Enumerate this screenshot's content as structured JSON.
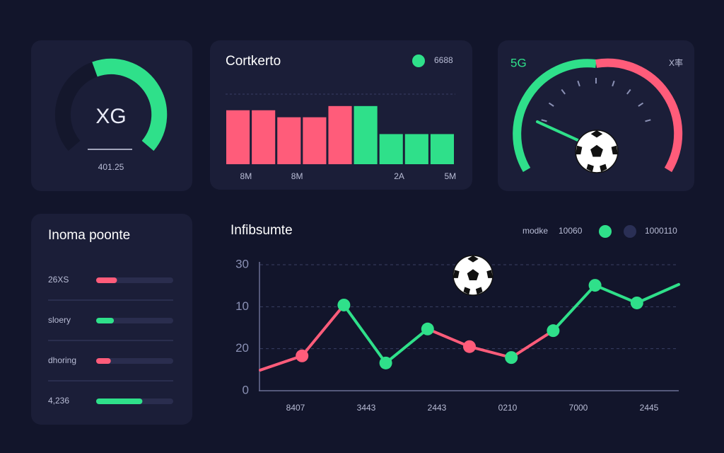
{
  "panels": {
    "xg_gauge": {
      "label": "XG",
      "value": "401.25"
    },
    "bar_chart": {
      "type": "bar",
      "title": "Cortkerto",
      "legend": "6688",
      "legend_color": "#2fe08a",
      "categories": [
        "8M",
        null,
        "8M",
        null,
        null,
        null,
        "2A",
        null,
        "5M"
      ],
      "values": [
        77,
        77,
        67,
        67,
        83,
        83,
        43,
        43,
        43
      ],
      "colors": [
        "#ff5c7a",
        "#ff5c7a",
        "#ff5c7a",
        "#ff5c7a",
        "#ff5c7a",
        "#2fe08a",
        "#2fe08a",
        "#2fe08a",
        "#2fe08a"
      ],
      "ylim": [
        0,
        100
      ]
    },
    "speed_gauge": {
      "label": "5G",
      "unit": "X率"
    },
    "progress_list": {
      "title": "Inoma poonte",
      "max": 100,
      "rows": [
        {
          "label": "26XS",
          "value": 27,
          "color": "#ff5c7a"
        },
        {
          "label": "sloery",
          "value": 23,
          "color": "#2fe08a"
        },
        {
          "label": "dhoring",
          "value": 19,
          "color": "#ff5c7a"
        },
        {
          "label": "4,236",
          "value": 60,
          "color": "#2fe08a"
        }
      ]
    },
    "line_chart": {
      "type": "line",
      "title": "Infibsumte",
      "legend": [
        "modke",
        "10060",
        "1000110"
      ],
      "legend_colors": [
        "#2fe08a",
        "#2a2f55"
      ],
      "y_labels": [
        "30",
        "10",
        "20",
        "0"
      ],
      "ylim": [
        0,
        30
      ],
      "x_labels": [
        "8407",
        "3443",
        "2443",
        "0210",
        "7000",
        "2445"
      ],
      "values": [
        4.9,
        8.3,
        20.4,
        6.6,
        14.7,
        10.5,
        7.9,
        14.3,
        25.1,
        20.9,
        25.3
      ],
      "segment_colors": [
        "#ff5c7a",
        "#ff5c7a",
        "#2fe08a",
        "#2fe08a",
        "#ff5c7a",
        "#ff5c7a",
        "#ff5c7a",
        "#2fe08a",
        "#2fe08a",
        "#2fe08a"
      ],
      "point_colors": [
        null,
        "#ff5c7a",
        "#2fe08a",
        "#2fe08a",
        "#2fe08a",
        "#ff5c7a",
        "#2fe08a",
        "#2fe08a",
        "#2fe08a",
        "#2fe08a",
        null
      ]
    }
  }
}
